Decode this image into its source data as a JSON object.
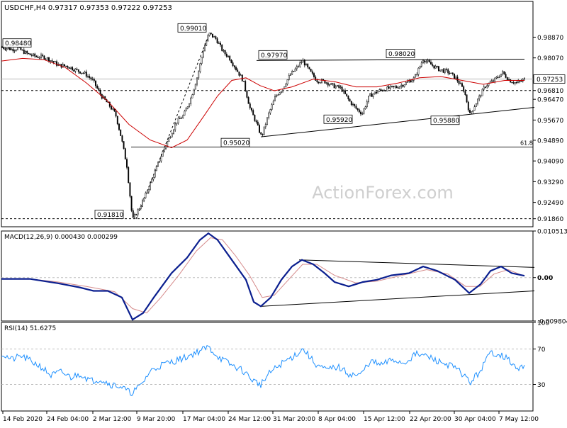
{
  "chart_data": [
    {
      "type": "candlestick",
      "panel": "price",
      "symbol_timeframe": "USDCHF,H4",
      "ohlc_header": [
        "0.97317",
        "0.97353",
        "0.97222",
        "0.97253"
      ],
      "title": "USDCHF,H4 0.97317 0.97353 0.97222 0.97253",
      "ylim": [
        0.9155,
        1.0025
      ],
      "yticks": [
        "0.98870",
        "0.98070",
        "0.97253",
        "0.96810",
        "0.96470",
        "0.95670",
        "0.94890",
        "0.94090",
        "0.93290",
        "0.92490",
        "0.91860"
      ],
      "highlight_price": "0.97253",
      "dashed_level_label": "0.96810",
      "bottom_level_label": "0.91860",
      "fib_label": "61.8",
      "fib_level": 0.9463,
      "x_tick_labels": [
        "14 Feb 2020",
        "24 Feb 04:00",
        "2 Mar 12:00",
        "9 Mar 20:00",
        "17 Mar 04:00",
        "24 Mar 12:00",
        "31 Mar 20:00",
        "8 Apr 04:00",
        "15 Apr 12:00",
        "22 Apr 20:00",
        "30 Apr 04:00",
        "7 May 12:00"
      ],
      "annotations": [
        {
          "label": "0.98480",
          "value": 0.9848
        },
        {
          "label": "0.91810",
          "value": 0.9181
        },
        {
          "label": "0.99010",
          "value": 0.9901
        },
        {
          "label": "0.95020",
          "value": 0.9502
        },
        {
          "label": "0.97970",
          "value": 0.9797
        },
        {
          "label": "0.95920",
          "value": 0.9592
        },
        {
          "label": "0.98020",
          "value": 0.9802
        },
        {
          "label": "0.95880",
          "value": 0.9588
        }
      ],
      "price_path": [
        [
          0,
          0.9848
        ],
        [
          14,
          0.984
        ],
        [
          22,
          0.9844
        ],
        [
          36,
          0.9822
        ],
        [
          48,
          0.9812
        ],
        [
          60,
          0.981
        ],
        [
          70,
          0.9795
        ],
        [
          80,
          0.9778
        ],
        [
          92,
          0.9775
        ],
        [
          104,
          0.976
        ],
        [
          116,
          0.9748
        ],
        [
          128,
          0.972
        ],
        [
          140,
          0.966
        ],
        [
          150,
          0.9628
        ],
        [
          160,
          0.959
        ],
        [
          168,
          0.95
        ],
        [
          176,
          0.939
        ],
        [
          184,
          0.9181
        ],
        [
          196,
          0.924
        ],
        [
          206,
          0.93
        ],
        [
          216,
          0.937
        ],
        [
          226,
          0.944
        ],
        [
          236,
          0.95
        ],
        [
          246,
          0.956
        ],
        [
          256,
          0.9585
        ],
        [
          266,
          0.965
        ],
        [
          276,
          0.974
        ],
        [
          284,
          0.984
        ],
        [
          292,
          0.9901
        ],
        [
          302,
          0.988
        ],
        [
          312,
          0.983
        ],
        [
          320,
          0.981
        ],
        [
          330,
          0.9765
        ],
        [
          340,
          0.972
        ],
        [
          350,
          0.961
        ],
        [
          358,
          0.956
        ],
        [
          366,
          0.9502
        ],
        [
          376,
          0.959
        ],
        [
          386,
          0.966
        ],
        [
          396,
          0.969
        ],
        [
          406,
          0.974
        ],
        [
          416,
          0.977
        ],
        [
          424,
          0.9797
        ],
        [
          434,
          0.9755
        ],
        [
          444,
          0.972
        ],
        [
          456,
          0.9715
        ],
        [
          466,
          0.97
        ],
        [
          478,
          0.969
        ],
        [
          490,
          0.964
        ],
        [
          500,
          0.961
        ],
        [
          508,
          0.9592
        ],
        [
          518,
          0.966
        ],
        [
          532,
          0.968
        ],
        [
          546,
          0.969
        ],
        [
          558,
          0.9695
        ],
        [
          570,
          0.971
        ],
        [
          582,
          0.973
        ],
        [
          594,
          0.9802
        ],
        [
          606,
          0.978
        ],
        [
          618,
          0.976
        ],
        [
          628,
          0.9755
        ],
        [
          640,
          0.973
        ],
        [
          652,
          0.968
        ],
        [
          660,
          0.9588
        ],
        [
          670,
          0.964
        ],
        [
          682,
          0.97
        ],
        [
          694,
          0.972
        ],
        [
          706,
          0.975
        ],
        [
          716,
          0.972
        ],
        [
          726,
          0.971
        ],
        [
          738,
          0.9725
        ]
      ],
      "ma_path": [
        [
          0,
          0.9795
        ],
        [
          30,
          0.9805
        ],
        [
          60,
          0.98
        ],
        [
          90,
          0.977
        ],
        [
          120,
          0.971
        ],
        [
          150,
          0.964
        ],
        [
          180,
          0.955
        ],
        [
          210,
          0.949
        ],
        [
          240,
          0.946
        ],
        [
          262,
          0.949
        ],
        [
          285,
          0.958
        ],
        [
          305,
          0.966
        ],
        [
          325,
          0.972
        ],
        [
          345,
          0.973
        ],
        [
          365,
          0.97
        ],
        [
          385,
          0.968
        ],
        [
          410,
          0.9695
        ],
        [
          440,
          0.9725
        ],
        [
          470,
          0.9715
        ],
        [
          500,
          0.9695
        ],
        [
          530,
          0.9695
        ],
        [
          560,
          0.971
        ],
        [
          590,
          0.973
        ],
        [
          620,
          0.9735
        ],
        [
          650,
          0.972
        ],
        [
          680,
          0.9705
        ],
        [
          710,
          0.972
        ],
        [
          738,
          0.972
        ]
      ],
      "trendlines": [
        {
          "from": [
            360,
            0.9797
          ],
          "to": [
            738,
            0.9802
          ]
        },
        {
          "from": [
            366,
            0.9502
          ],
          "to": [
            752,
            0.9616
          ]
        },
        {
          "from": [
            190,
            0.9185
          ],
          "to": [
            292,
            0.989
          ],
          "style": "dashed"
        }
      ]
    },
    {
      "type": "line",
      "panel": "macd",
      "indicator": "MACD(12,26,9)",
      "values_header": [
        "0.000430",
        "0.000299"
      ],
      "ylim": [
        -0.009804,
        0.010513
      ],
      "yticks": [
        "0.010513",
        "0.00",
        "-0.009804"
      ],
      "macd_path": [
        [
          0,
          -0.0003
        ],
        [
          40,
          -0.0003
        ],
        [
          80,
          -0.0013
        ],
        [
          110,
          -0.0022
        ],
        [
          130,
          -0.003
        ],
        [
          150,
          -0.003
        ],
        [
          170,
          -0.0045
        ],
        [
          185,
          -0.0095
        ],
        [
          200,
          -0.008
        ],
        [
          215,
          -0.0045
        ],
        [
          240,
          0.001
        ],
        [
          262,
          0.0045
        ],
        [
          280,
          0.0085
        ],
        [
          292,
          0.01
        ],
        [
          305,
          0.0085
        ],
        [
          325,
          0.004
        ],
        [
          345,
          -0.0005
        ],
        [
          356,
          -0.0055
        ],
        [
          366,
          -0.0065
        ],
        [
          380,
          -0.0045
        ],
        [
          395,
          -0.0005
        ],
        [
          410,
          0.0025
        ],
        [
          424,
          0.004
        ],
        [
          440,
          0.003
        ],
        [
          456,
          0.001
        ],
        [
          470,
          -0.001
        ],
        [
          490,
          -0.002
        ],
        [
          510,
          -0.001
        ],
        [
          530,
          -0.0005
        ],
        [
          550,
          0.0005
        ],
        [
          575,
          0.001
        ],
        [
          595,
          0.0025
        ],
        [
          615,
          0.0015
        ],
        [
          640,
          -0.0005
        ],
        [
          660,
          -0.0035
        ],
        [
          676,
          -0.0015
        ],
        [
          690,
          0.0015
        ],
        [
          705,
          0.0025
        ],
        [
          720,
          0.001
        ],
        [
          738,
          0.0004
        ]
      ],
      "signal_path": [
        [
          0,
          -0.0003
        ],
        [
          40,
          -0.0003
        ],
        [
          80,
          -0.001
        ],
        [
          120,
          -0.002
        ],
        [
          160,
          -0.0032
        ],
        [
          185,
          -0.007
        ],
        [
          205,
          -0.008
        ],
        [
          225,
          -0.0045
        ],
        [
          250,
          0.0005
        ],
        [
          275,
          0.006
        ],
        [
          295,
          0.009
        ],
        [
          312,
          0.0085
        ],
        [
          330,
          0.005
        ],
        [
          350,
          0.0005
        ],
        [
          368,
          -0.0045
        ],
        [
          385,
          -0.004
        ],
        [
          405,
          -0.0005
        ],
        [
          425,
          0.003
        ],
        [
          445,
          0.003
        ],
        [
          470,
          0.0005
        ],
        [
          500,
          -0.0012
        ],
        [
          530,
          -0.0008
        ],
        [
          560,
          0.0003
        ],
        [
          600,
          0.0018
        ],
        [
          630,
          0.0008
        ],
        [
          655,
          -0.002
        ],
        [
          675,
          -0.002
        ],
        [
          695,
          0.0008
        ],
        [
          715,
          0.0018
        ],
        [
          738,
          0.0003
        ]
      ],
      "trendlines": [
        {
          "from": [
            420,
            0.004
          ],
          "to": [
            752,
            0.0023
          ]
        },
        {
          "from": [
            366,
            -0.0065
          ],
          "to": [
            752,
            -0.003
          ]
        }
      ]
    },
    {
      "type": "line",
      "panel": "rsi",
      "indicator": "RSI(14)",
      "value_header": "51.6275",
      "ylim": [
        0,
        100
      ],
      "yticks": [
        "100",
        "70",
        "30",
        "0"
      ],
      "levels": [
        70,
        30
      ],
      "rsi_path": [
        [
          0,
          65
        ],
        [
          14,
          58
        ],
        [
          28,
          62
        ],
        [
          42,
          56
        ],
        [
          56,
          50
        ],
        [
          70,
          40
        ],
        [
          84,
          44
        ],
        [
          98,
          38
        ],
        [
          112,
          42
        ],
        [
          126,
          34
        ],
        [
          140,
          36
        ],
        [
          154,
          30
        ],
        [
          168,
          28
        ],
        [
          182,
          20
        ],
        [
          196,
          28
        ],
        [
          210,
          45
        ],
        [
          226,
          52
        ],
        [
          242,
          56
        ],
        [
          258,
          60
        ],
        [
          274,
          66
        ],
        [
          292,
          72
        ],
        [
          308,
          60
        ],
        [
          324,
          52
        ],
        [
          340,
          46
        ],
        [
          356,
          34
        ],
        [
          366,
          30
        ],
        [
          380,
          44
        ],
        [
          396,
          54
        ],
        [
          412,
          62
        ],
        [
          426,
          70
        ],
        [
          442,
          54
        ],
        [
          458,
          46
        ],
        [
          474,
          50
        ],
        [
          490,
          42
        ],
        [
          506,
          40
        ],
        [
          520,
          56
        ],
        [
          536,
          52
        ],
        [
          552,
          58
        ],
        [
          568,
          54
        ],
        [
          584,
          64
        ],
        [
          600,
          62
        ],
        [
          616,
          56
        ],
        [
          632,
          52
        ],
        [
          648,
          44
        ],
        [
          662,
          32
        ],
        [
          676,
          46
        ],
        [
          690,
          66
        ],
        [
          704,
          64
        ],
        [
          718,
          56
        ],
        [
          728,
          46
        ],
        [
          738,
          52
        ]
      ]
    }
  ],
  "watermark": "ActionForex.com"
}
